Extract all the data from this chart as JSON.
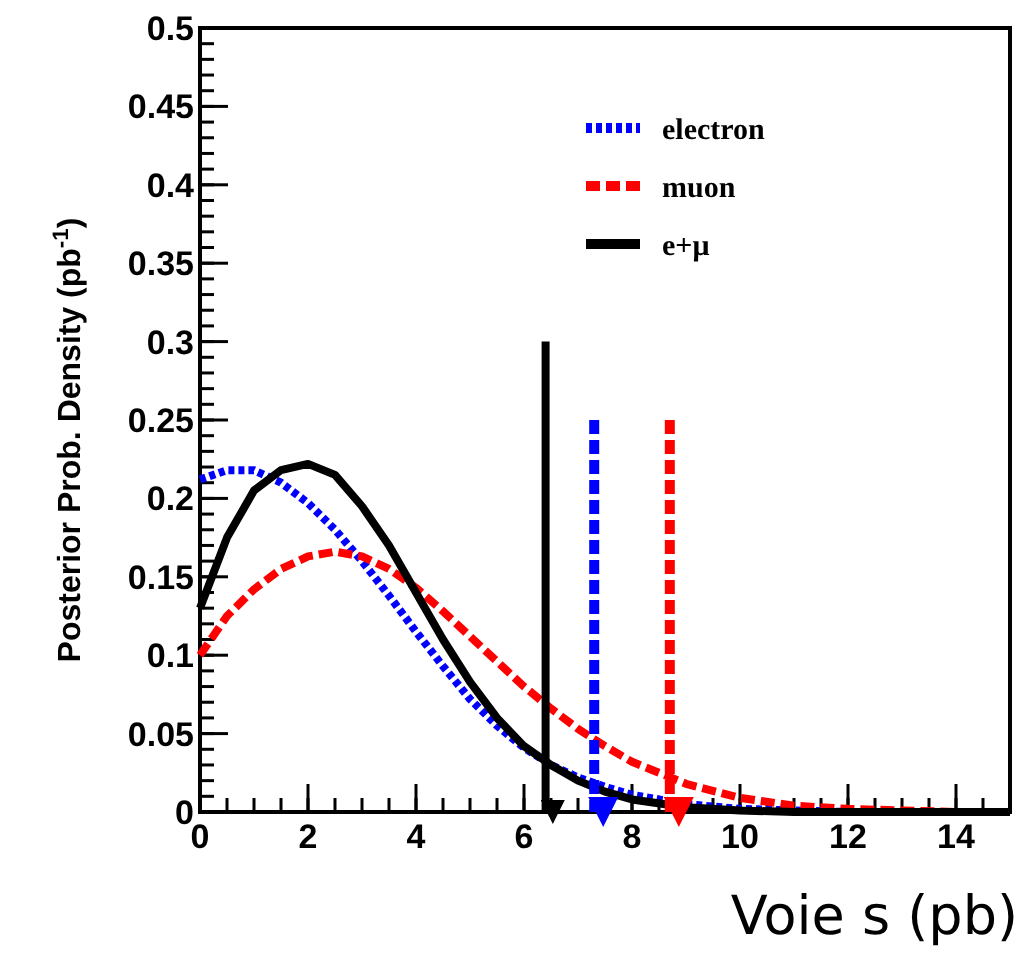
{
  "chart_data": {
    "type": "line",
    "xlabel": "Voie s (pb)",
    "ylabel": "Posterior Prob. Density (pb$^{-1}$)",
    "xlim": [
      0,
      15
    ],
    "ylim": [
      0,
      0.5
    ],
    "xticks": [
      0,
      2,
      4,
      6,
      8,
      10,
      12,
      14
    ],
    "yticks": [
      0,
      0.05,
      0.1,
      0.15,
      0.2,
      0.25,
      0.3,
      0.35,
      0.4,
      0.45,
      0.5
    ],
    "grid": false,
    "legend": "top right",
    "series": [
      {
        "name": "electron",
        "color": "#0000ff",
        "line_style": "dotted",
        "x": [
          0,
          0.5,
          1,
          1.5,
          2,
          2.5,
          3,
          3.5,
          4,
          4.5,
          5,
          5.5,
          6,
          6.5,
          7,
          7.5,
          8,
          9,
          10,
          11,
          12,
          15
        ],
        "values": [
          0.212,
          0.218,
          0.218,
          0.21,
          0.197,
          0.18,
          0.16,
          0.138,
          0.115,
          0.093,
          0.072,
          0.055,
          0.041,
          0.03,
          0.022,
          0.016,
          0.011,
          0.005,
          0.002,
          0.001,
          0,
          0
        ]
      },
      {
        "name": "muon",
        "color": "#ff0000",
        "line_style": "dashed",
        "x": [
          0,
          0.5,
          1,
          1.5,
          2,
          2.5,
          3,
          3.5,
          4,
          4.5,
          5,
          5.5,
          6,
          6.5,
          7,
          7.5,
          8,
          9,
          10,
          11,
          12,
          13,
          14,
          15
        ],
        "values": [
          0.1,
          0.125,
          0.142,
          0.155,
          0.163,
          0.166,
          0.163,
          0.155,
          0.143,
          0.128,
          0.112,
          0.096,
          0.08,
          0.066,
          0.053,
          0.042,
          0.032,
          0.018,
          0.009,
          0.004,
          0.002,
          0.001,
          0,
          0
        ]
      },
      {
        "name": "e+μ",
        "color": "#000000",
        "line_style": "solid",
        "x": [
          0,
          0.5,
          1,
          1.5,
          2,
          2.5,
          3,
          3.5,
          4,
          4.5,
          5,
          5.5,
          6,
          6.5,
          7,
          7.5,
          8,
          9,
          10,
          11,
          15
        ],
        "values": [
          0.13,
          0.175,
          0.205,
          0.218,
          0.222,
          0.215,
          0.195,
          0.17,
          0.14,
          0.11,
          0.083,
          0.06,
          0.042,
          0.03,
          0.02,
          0.013,
          0.008,
          0.003,
          0.001,
          0,
          0
        ]
      },
      {
        "color": "#000000",
        "line_style": "solid",
        "x": [
          6.4,
          6.4
        ],
        "values": [
          0.3,
          0
        ]
      },
      {
        "color": "#0000ff",
        "line_style": "dashed",
        "x": [
          7.3,
          7.3
        ],
        "values": [
          0.25,
          0
        ]
      },
      {
        "color": "#ff0000",
        "line_style": "dashed",
        "x": [
          8.7,
          8.7
        ],
        "values": [
          0.25,
          0
        ]
      }
    ]
  }
}
